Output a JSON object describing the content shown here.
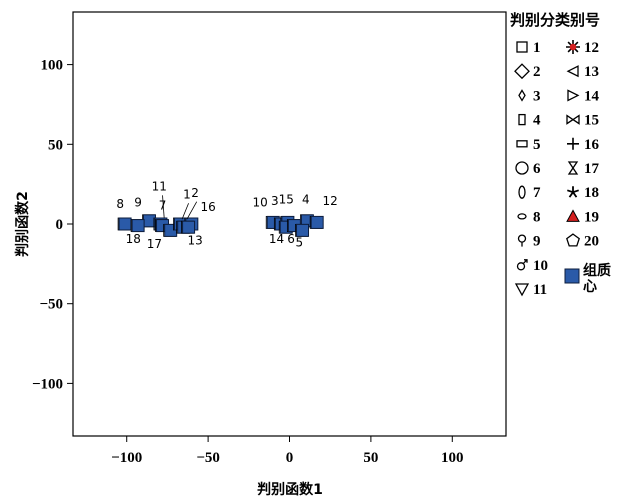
{
  "chart_data": {
    "type": "scatter",
    "xlabel": "判别函数1",
    "ylabel": "判别函数2",
    "xlim": [
      -133,
      133
    ],
    "ylim": [
      -133,
      133
    ],
    "xticks": [
      -100,
      -50,
      0,
      50,
      100
    ],
    "yticks": [
      100,
      50,
      0,
      -50,
      -100
    ],
    "xtick_labels": [
      "−100",
      "−50",
      "0",
      "50",
      "100"
    ],
    "ytick_labels": [
      "100",
      "50",
      "0",
      "−50",
      "−100"
    ],
    "grid": false,
    "legend_title": "判别分类别号",
    "legend_position": "right",
    "legend": [
      {
        "label": "1",
        "marker": "square-open"
      },
      {
        "label": "2",
        "marker": "diamond-open"
      },
      {
        "label": "3",
        "marker": "small-diamond-open"
      },
      {
        "label": "4",
        "marker": "tall-rect-open"
      },
      {
        "label": "5",
        "marker": "wide-rect-open"
      },
      {
        "label": "6",
        "marker": "circle-open"
      },
      {
        "label": "7",
        "marker": "ellipse-vertical-open"
      },
      {
        "label": "8",
        "marker": "ellipse-horizontal-open"
      },
      {
        "label": "9",
        "marker": "female-symbol"
      },
      {
        "label": "10",
        "marker": "male-symbol"
      },
      {
        "label": "11",
        "marker": "triangle-down-open"
      },
      {
        "label": "12",
        "marker": "star-burst-red"
      },
      {
        "label": "13",
        "marker": "triangle-left-open"
      },
      {
        "label": "14",
        "marker": "triangle-right-open"
      },
      {
        "label": "15",
        "marker": "bowtie-open"
      },
      {
        "label": "16",
        "marker": "plus"
      },
      {
        "label": "17",
        "marker": "hourglass-open"
      },
      {
        "label": "18",
        "marker": "asterisk-star"
      },
      {
        "label": "19",
        "marker": "triangle-up-red"
      },
      {
        "label": "20",
        "marker": "pentagon-open"
      },
      {
        "label": "组质心",
        "marker": "square-filled-blue"
      }
    ],
    "centroids": [
      {
        "label": "8",
        "x": -101,
        "y": 0
      },
      {
        "label": "9",
        "x": -86,
        "y": 2
      },
      {
        "label": "11",
        "x": -79,
        "y": 0
      },
      {
        "label": "7",
        "x": -78,
        "y": -1
      },
      {
        "label": "18",
        "x": -93,
        "y": -1
      },
      {
        "label": "17",
        "x": -73,
        "y": -4
      },
      {
        "label": "1",
        "x": -67,
        "y": 0
      },
      {
        "label": "2",
        "x": -65,
        "y": -2
      },
      {
        "label": "16",
        "x": -60,
        "y": 0
      },
      {
        "label": "13",
        "x": -62,
        "y": -2
      },
      {
        "label": "10",
        "x": -10,
        "y": 1
      },
      {
        "label": "3",
        "x": -5,
        "y": 0
      },
      {
        "label": "15",
        "x": -1,
        "y": 1
      },
      {
        "label": "4",
        "x": 11,
        "y": 2
      },
      {
        "label": "12",
        "x": 17,
        "y": 1
      },
      {
        "label": "14",
        "x": -2,
        "y": -2
      },
      {
        "label": "6",
        "x": 3,
        "y": -1
      },
      {
        "label": "5",
        "x": 8,
        "y": -4
      }
    ],
    "point_labels": [
      {
        "text": "8",
        "x": -104,
        "y": 10
      },
      {
        "text": "9",
        "x": -93,
        "y": 11
      },
      {
        "text": "11",
        "x": -80,
        "y": 21
      },
      {
        "text": "7",
        "x": -78,
        "y": 9
      },
      {
        "text": "1",
        "x": -63,
        "y": 16
      },
      {
        "text": "2",
        "x": -58,
        "y": 17
      },
      {
        "text": "16",
        "x": -50,
        "y": 8
      },
      {
        "text": "18",
        "x": -96,
        "y": -12
      },
      {
        "text": "17",
        "x": -83,
        "y": -15
      },
      {
        "text": "13",
        "x": -58,
        "y": -13
      },
      {
        "text": "10",
        "x": -18,
        "y": 11
      },
      {
        "text": "3",
        "x": -9,
        "y": 12
      },
      {
        "text": "15",
        "x": -2,
        "y": 13
      },
      {
        "text": "4",
        "x": 10,
        "y": 13
      },
      {
        "text": "12",
        "x": 25,
        "y": 12
      },
      {
        "text": "14",
        "x": -8,
        "y": -12
      },
      {
        "text": "6",
        "x": 1,
        "y": -12
      },
      {
        "text": "5",
        "x": 6,
        "y": -14
      }
    ],
    "colors": {
      "centroid_fill": "#2a5aa8",
      "centroid_stroke": "#0d1d3d",
      "red_marker": "#d42020",
      "axis": "#000000"
    }
  }
}
